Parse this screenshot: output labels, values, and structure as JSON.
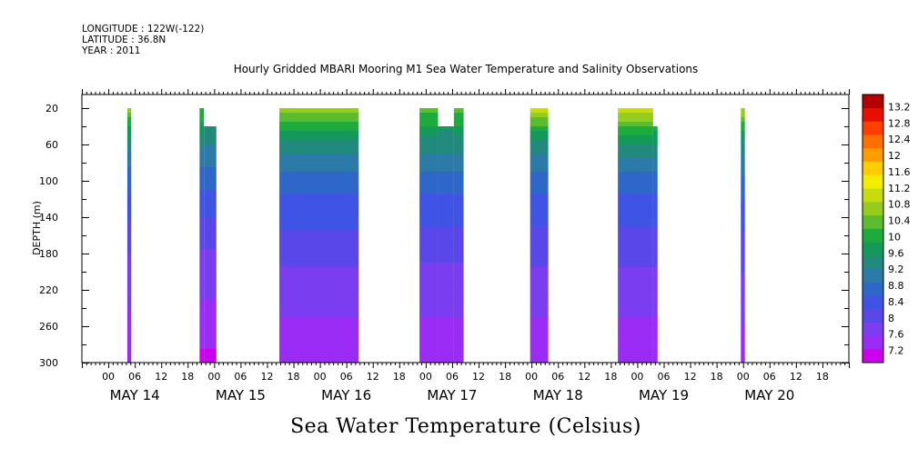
{
  "header": {
    "longitude": "LONGITUDE : 122W(-122)",
    "latitude": "LATITUDE : 36.8N",
    "year": "YEAR : 2011",
    "title": "Hourly Gridded MBARI Mooring M1 Sea Water Temperature and Salinity Observations"
  },
  "chart_data": {
    "type": "heatmap",
    "title": "Hourly Gridded MBARI Mooring M1 Sea Water Temperature and Salinity Observations",
    "xlabel": "Sea Water Temperature (Celsius)",
    "ylabel": "DEPTH (m)",
    "x_unit": "hours since May 14 00:00",
    "xlim": [
      -6,
      168
    ],
    "ylim": [
      300,
      5
    ],
    "y_ticks": [
      20,
      60,
      100,
      140,
      180,
      220,
      260,
      300
    ],
    "x_hour_ticks": [
      {
        "h": 0,
        "label": "00"
      },
      {
        "h": 6,
        "label": "06"
      },
      {
        "h": 12,
        "label": "12"
      },
      {
        "h": 18,
        "label": "18"
      },
      {
        "h": 24,
        "label": "00"
      },
      {
        "h": 30,
        "label": "06"
      },
      {
        "h": 36,
        "label": "12"
      },
      {
        "h": 42,
        "label": "18"
      },
      {
        "h": 48,
        "label": "00"
      },
      {
        "h": 54,
        "label": "06"
      },
      {
        "h": 60,
        "label": "12"
      },
      {
        "h": 66,
        "label": "18"
      },
      {
        "h": 72,
        "label": "00"
      },
      {
        "h": 78,
        "label": "06"
      },
      {
        "h": 84,
        "label": "12"
      },
      {
        "h": 90,
        "label": "18"
      },
      {
        "h": 96,
        "label": "00"
      },
      {
        "h": 102,
        "label": "06"
      },
      {
        "h": 108,
        "label": "12"
      },
      {
        "h": 114,
        "label": "18"
      },
      {
        "h": 120,
        "label": "00"
      },
      {
        "h": 126,
        "label": "06"
      },
      {
        "h": 132,
        "label": "12"
      },
      {
        "h": 138,
        "label": "18"
      },
      {
        "h": 144,
        "label": "00"
      },
      {
        "h": 150,
        "label": "06"
      },
      {
        "h": 156,
        "label": "12"
      },
      {
        "h": 162,
        "label": "18"
      }
    ],
    "day_labels": [
      {
        "h": 6,
        "label": "MAY 14"
      },
      {
        "h": 30,
        "label": "MAY 15"
      },
      {
        "h": 54,
        "label": "MAY 16"
      },
      {
        "h": 78,
        "label": "MAY 17"
      },
      {
        "h": 102,
        "label": "MAY 18"
      },
      {
        "h": 126,
        "label": "MAY 19"
      },
      {
        "h": 150,
        "label": "MAY 20"
      }
    ],
    "colorbar": {
      "levels": [
        7.2,
        7.6,
        8,
        8.4,
        8.8,
        9.2,
        9.6,
        10,
        10.4,
        10.8,
        11.2,
        11.6,
        12,
        12.4,
        12.8,
        13.2
      ],
      "labels": [
        "13.2",
        "12.8",
        "12.4",
        "12",
        "11.6",
        "11.2",
        "10.8",
        "10.4",
        "10",
        "9.6",
        "9.2",
        "8.8",
        "8.4",
        "8",
        "7.6",
        "7.2"
      ],
      "colors": [
        "#cc00ee",
        "#9b2cf6",
        "#7a3ef0",
        "#5a47ea",
        "#3f53e4",
        "#2f67c8",
        "#2b7aa8",
        "#228a7c",
        "#149a58",
        "#1eab3c",
        "#5bbd2e",
        "#96cc1e",
        "#c8dc0c",
        "#f2ee00",
        "#ffcc00",
        "#ff9d00",
        "#ff6f00",
        "#ff3f00",
        "#e80f00",
        "#b40000"
      ]
    },
    "blocks": [
      {
        "x0": 4.3,
        "x1": 5.2,
        "top": 20,
        "profile": [
          [
            20,
            10.6
          ],
          [
            40,
            9.9
          ],
          [
            70,
            9.2
          ],
          [
            100,
            8.8
          ],
          [
            140,
            8.45
          ],
          [
            180,
            8.1
          ],
          [
            240,
            7.8
          ],
          [
            300,
            7.6
          ]
        ]
      },
      {
        "x0": 20.7,
        "x1": 21.7,
        "top": 20,
        "profile": [
          [
            20,
            10.2
          ],
          [
            60,
            9.4
          ],
          [
            100,
            8.8
          ],
          [
            140,
            8.4
          ],
          [
            180,
            8.05
          ],
          [
            230,
            7.8
          ],
          [
            260,
            7.6
          ],
          [
            300,
            7.45
          ]
        ]
      },
      {
        "x0": 21.7,
        "x1": 24.5,
        "top": 40,
        "profile": [
          [
            40,
            9.6
          ],
          [
            70,
            9.2
          ],
          [
            100,
            8.8
          ],
          [
            140,
            8.4
          ],
          [
            180,
            8.05
          ],
          [
            230,
            7.8
          ],
          [
            260,
            7.6
          ],
          [
            300,
            7.45
          ]
        ]
      },
      {
        "x0": 38.8,
        "x1": 56.8,
        "top": 20,
        "profile": [
          [
            20,
            10.6
          ],
          [
            35,
            10.2
          ],
          [
            55,
            9.6
          ],
          [
            75,
            9.2
          ],
          [
            100,
            8.85
          ],
          [
            140,
            8.5
          ],
          [
            180,
            8.2
          ],
          [
            220,
            7.95
          ],
          [
            260,
            7.75
          ],
          [
            300,
            7.55
          ]
        ]
      },
      {
        "x0": 70.6,
        "x1": 74.8,
        "top": 20,
        "profile": [
          [
            20,
            10.4
          ],
          [
            50,
            9.6
          ],
          [
            75,
            9.2
          ],
          [
            100,
            8.85
          ],
          [
            140,
            8.5
          ],
          [
            180,
            8.15
          ],
          [
            230,
            7.9
          ],
          [
            270,
            7.7
          ],
          [
            300,
            7.55
          ]
        ]
      },
      {
        "x0": 74.8,
        "x1": 78.4,
        "top": 40,
        "profile": [
          [
            40,
            9.7
          ],
          [
            75,
            9.2
          ],
          [
            100,
            8.85
          ],
          [
            140,
            8.5
          ],
          [
            180,
            8.15
          ],
          [
            230,
            7.9
          ],
          [
            270,
            7.7
          ],
          [
            300,
            7.55
          ]
        ]
      },
      {
        "x0": 78.4,
        "x1": 80.6,
        "top": 20,
        "profile": [
          [
            20,
            10.4
          ],
          [
            50,
            9.6
          ],
          [
            75,
            9.2
          ],
          [
            100,
            8.85
          ],
          [
            140,
            8.5
          ],
          [
            180,
            8.15
          ],
          [
            230,
            7.9
          ],
          [
            270,
            7.7
          ],
          [
            300,
            7.55
          ]
        ]
      },
      {
        "x0": 95.7,
        "x1": 99.8,
        "top": 20,
        "profile": [
          [
            20,
            11.0
          ],
          [
            35,
            10.3
          ],
          [
            55,
            9.6
          ],
          [
            80,
            9.1
          ],
          [
            110,
            8.75
          ],
          [
            150,
            8.4
          ],
          [
            200,
            8.05
          ],
          [
            250,
            7.8
          ],
          [
            300,
            7.6
          ]
        ]
      },
      {
        "x0": 115.6,
        "x1": 123.6,
        "top": 20,
        "profile": [
          [
            20,
            11.1
          ],
          [
            35,
            10.4
          ],
          [
            55,
            9.7
          ],
          [
            80,
            9.15
          ],
          [
            110,
            8.75
          ],
          [
            150,
            8.4
          ],
          [
            200,
            8.05
          ],
          [
            250,
            7.8
          ],
          [
            300,
            7.55
          ]
        ]
      },
      {
        "x0": 123.6,
        "x1": 124.6,
        "top": 40,
        "profile": [
          [
            40,
            10.0
          ],
          [
            60,
            9.6
          ],
          [
            80,
            9.15
          ],
          [
            110,
            8.75
          ],
          [
            150,
            8.4
          ],
          [
            200,
            8.05
          ],
          [
            250,
            7.8
          ],
          [
            300,
            7.55
          ]
        ]
      },
      {
        "x0": 143.5,
        "x1": 144.4,
        "top": 20,
        "profile": [
          [
            20,
            10.8
          ],
          [
            40,
            10.0
          ],
          [
            70,
            9.3
          ],
          [
            100,
            8.9
          ],
          [
            140,
            8.5
          ],
          [
            190,
            8.15
          ],
          [
            250,
            7.85
          ],
          [
            300,
            7.6
          ]
        ]
      }
    ]
  }
}
